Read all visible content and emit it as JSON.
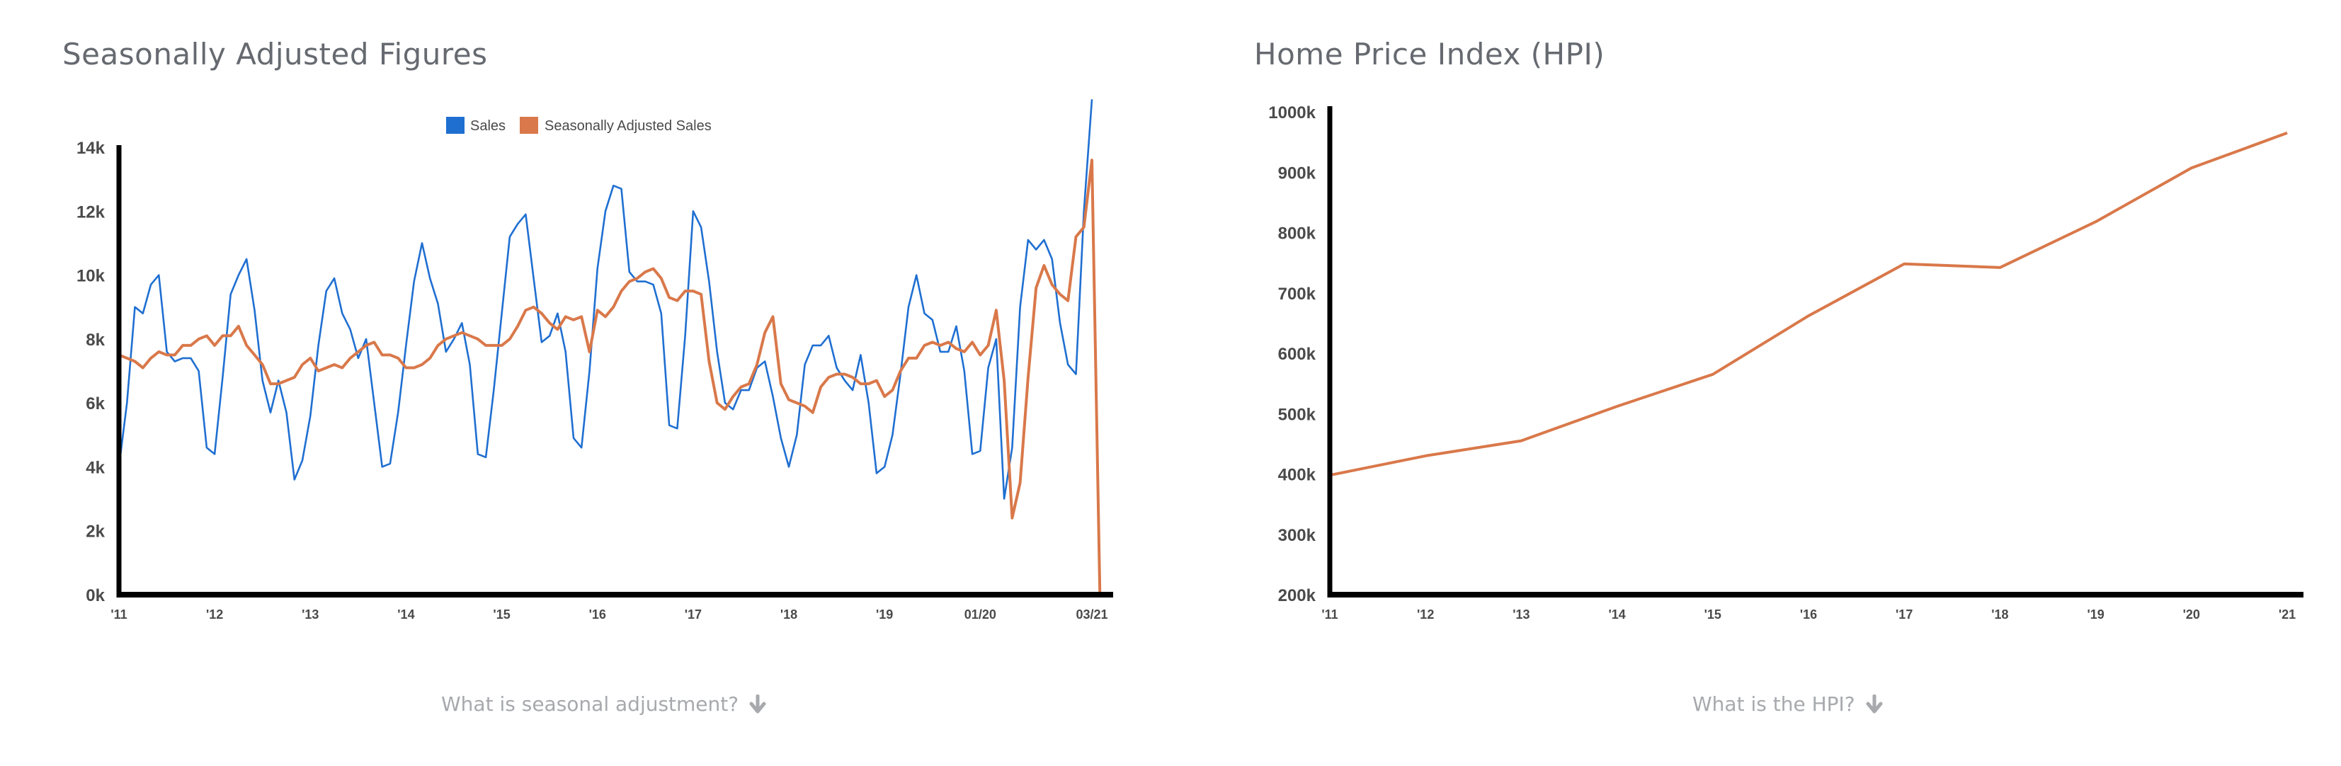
{
  "left_panel": {
    "title": "Seasonally Adjusted Figures",
    "help_text": "What is seasonal adjustment?",
    "help_icon": "arrow-down-icon"
  },
  "right_panel": {
    "title": "Home Price Index (HPI)",
    "help_text": "What is the HPI?",
    "help_icon": "arrow-down-icon"
  },
  "chart_data": [
    {
      "type": "line",
      "title": "",
      "xlabel": "",
      "ylabel": "",
      "x_ticks": [
        {
          "label": "'11",
          "month": 0
        },
        {
          "label": "'12",
          "month": 12
        },
        {
          "label": "'13",
          "month": 24
        },
        {
          "label": "'14",
          "month": 36
        },
        {
          "label": "'15",
          "month": 48
        },
        {
          "label": "'16",
          "month": 60
        },
        {
          "label": "'17",
          "month": 72
        },
        {
          "label": "'18",
          "month": 84
        },
        {
          "label": "'19",
          "month": 96
        },
        {
          "label": "01/20",
          "month": 108
        },
        {
          "label": "03/21",
          "month": 122
        }
      ],
      "x_range": [
        0,
        122
      ],
      "ylim": [
        0,
        14000
      ],
      "y_ticks": [
        {
          "label": "0k",
          "value": 0
        },
        {
          "label": "2k",
          "value": 2000
        },
        {
          "label": "4k",
          "value": 4000
        },
        {
          "label": "6k",
          "value": 6000
        },
        {
          "label": "8k",
          "value": 8000
        },
        {
          "label": "10k",
          "value": 10000
        },
        {
          "label": "12k",
          "value": 12000
        },
        {
          "label": "14k",
          "value": 14000
        }
      ],
      "grid": false,
      "legend": "top-center",
      "series": [
        {
          "name": "Sales",
          "color": "#1f6fd1",
          "values": [
            4000,
            6000,
            9000,
            8800,
            9700,
            10000,
            7600,
            7300,
            7400,
            7400,
            7000,
            4600,
            4400,
            6800,
            9400,
            10000,
            10500,
            8900,
            6700,
            5700,
            6700,
            5700,
            3600,
            4200,
            5600,
            7800,
            9500,
            9900,
            8800,
            8300,
            7400,
            8000,
            6000,
            4000,
            4100,
            5700,
            7800,
            9800,
            11000,
            9900,
            9100,
            7600,
            8000,
            8500,
            7200,
            4400,
            4300,
            6400,
            8800,
            11200,
            11600,
            11900,
            9900,
            7900,
            8100,
            8800,
            7600,
            4900,
            4600,
            7000,
            10200,
            12000,
            12800,
            12700,
            10100,
            9800,
            9800,
            9700,
            8800,
            5300,
            5200,
            8100,
            12000,
            11500,
            9800,
            7600,
            6000,
            5800,
            6400,
            6400,
            7100,
            7300,
            6200,
            4900,
            4000,
            5000,
            7200,
            7800,
            7800,
            8100,
            7100,
            6700,
            6400,
            7500,
            6000,
            3800,
            4000,
            5000,
            6900,
            9000,
            10000,
            8800,
            8600,
            7600,
            7600,
            8400,
            7000,
            4400,
            4500,
            7100,
            8000,
            3000,
            4600,
            9000,
            11100,
            10800,
            11100,
            10500,
            8500,
            7200,
            6900,
            12000,
            15500
          ]
        },
        {
          "name": "Seasonally Adjusted Sales",
          "color": "#d9784a",
          "values": [
            7500,
            7400,
            7300,
            7100,
            7400,
            7600,
            7500,
            7500,
            7800,
            7800,
            8000,
            8100,
            7800,
            8100,
            8100,
            8400,
            7800,
            7500,
            7200,
            6600,
            6600,
            6700,
            6800,
            7200,
            7400,
            7000,
            7100,
            7200,
            7100,
            7400,
            7600,
            7800,
            7900,
            7500,
            7500,
            7400,
            7100,
            7100,
            7200,
            7400,
            7800,
            8000,
            8100,
            8200,
            8100,
            8000,
            7800,
            7800,
            7800,
            8000,
            8400,
            8900,
            9000,
            8800,
            8500,
            8300,
            8700,
            8600,
            8700,
            7600,
            8900,
            8700,
            9000,
            9500,
            9800,
            9900,
            10100,
            10200,
            9900,
            9300,
            9200,
            9500,
            9500,
            9400,
            7300,
            6000,
            5800,
            6200,
            6500,
            6600,
            7200,
            8200,
            8700,
            6600,
            6100,
            6000,
            5900,
            5700,
            6500,
            6800,
            6900,
            6900,
            6800,
            6600,
            6600,
            6700,
            6200,
            6400,
            7000,
            7400,
            7400,
            7800,
            7900,
            7800,
            7900,
            7700,
            7600,
            7900,
            7500,
            7800,
            8900,
            6700,
            2400,
            3500,
            6800,
            9600,
            10300,
            9700,
            9400,
            9200,
            11200,
            11500,
            13600,
            0
          ]
        }
      ]
    },
    {
      "type": "line",
      "title": "",
      "xlabel": "",
      "ylabel": "",
      "categories": [
        "'11",
        "'12",
        "'13",
        "'14",
        "'15",
        "'16",
        "'17",
        "'18",
        "'19",
        "'20",
        "'21"
      ],
      "ylim": [
        200000,
        1000000
      ],
      "y_ticks": [
        {
          "label": "200k",
          "value": 200000
        },
        {
          "label": "300k",
          "value": 300000
        },
        {
          "label": "400k",
          "value": 400000
        },
        {
          "label": "500k",
          "value": 500000
        },
        {
          "label": "600k",
          "value": 600000
        },
        {
          "label": "700k",
          "value": 700000
        },
        {
          "label": "800k",
          "value": 800000
        },
        {
          "label": "900k",
          "value": 900000
        },
        {
          "label": "1000k",
          "value": 1000000
        }
      ],
      "grid": false,
      "series": [
        {
          "color": "#d9784a",
          "values": [
            398000,
            430000,
            455000,
            512000,
            565000,
            662000,
            748000,
            742000,
            818000,
            907000,
            965000
          ]
        }
      ]
    }
  ]
}
